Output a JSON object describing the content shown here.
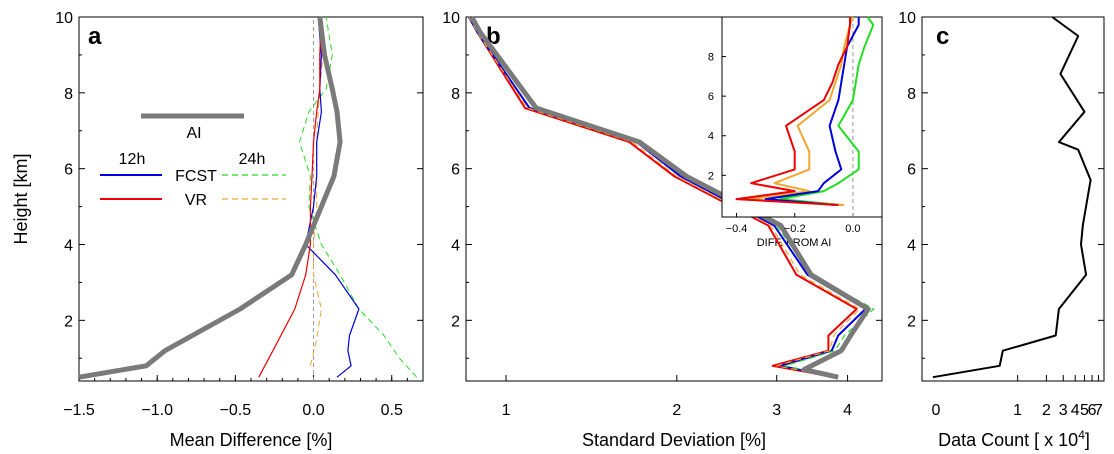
{
  "colors": {
    "ai": "#7a7a7a",
    "fcst_12h": "#0000dd",
    "vr_12h": "#ee0000",
    "fcst_24h": "#22dd22",
    "vr_24h": "#f0a830",
    "zero_line": "#999999",
    "text": "#000000"
  },
  "y_axis": {
    "label": "Height [km]",
    "ticks": [
      2,
      4,
      6,
      8,
      10
    ]
  },
  "legend": {
    "ai_label": "AI",
    "header_12h": "12h",
    "header_24h": "24h",
    "fcst_label": "FCST",
    "vr_label": "VR"
  },
  "chart_data": [
    {
      "panel": "a",
      "type": "line",
      "xlabel": "Mean Difference [%]",
      "ylabel": "Height [km]",
      "xlim": [
        -1.5,
        0.7
      ],
      "ylim": [
        0.4,
        10
      ],
      "xticks": [
        -1.5,
        -1.0,
        -0.5,
        0.0,
        0.5
      ],
      "xtick_labels": [
        "−1.5",
        "−1.0",
        "−0.5",
        "0.0",
        "0.5"
      ],
      "yticks": [
        2,
        4,
        6,
        8,
        10
      ],
      "legend_position": "center-left",
      "series": [
        {
          "key": "ai",
          "name": "AI",
          "style": "thick-solid",
          "points": [
            [
              -1.5,
              0.5
            ],
            [
              -1.07,
              0.8
            ],
            [
              -0.95,
              1.2
            ],
            [
              -0.47,
              2.3
            ],
            [
              -0.14,
              3.2
            ],
            [
              -0.05,
              4.0
            ],
            [
              0.05,
              5.0
            ],
            [
              0.13,
              5.8
            ],
            [
              0.17,
              6.7
            ],
            [
              0.15,
              7.5
            ],
            [
              0.12,
              8.1
            ],
            [
              0.07,
              9.0
            ],
            [
              0.04,
              10.0
            ]
          ]
        },
        {
          "key": "fcst_12h",
          "name": "FCST 12h",
          "style": "solid",
          "points": [
            [
              0.15,
              0.5
            ],
            [
              0.24,
              0.8
            ],
            [
              0.22,
              1.2
            ],
            [
              0.23,
              1.6
            ],
            [
              0.29,
              2.3
            ],
            [
              0.14,
              3.2
            ],
            [
              -0.05,
              4.0
            ],
            [
              0.0,
              5.0
            ],
            [
              0.02,
              5.8
            ],
            [
              0.02,
              6.7
            ],
            [
              0.05,
              7.5
            ],
            [
              0.04,
              8.1
            ],
            [
              0.05,
              9.0
            ],
            [
              0.03,
              10.0
            ]
          ]
        },
        {
          "key": "vr_12h",
          "name": "VR 12h",
          "style": "solid",
          "points": [
            [
              -0.35,
              0.5
            ],
            [
              -0.26,
              1.2
            ],
            [
              -0.12,
              2.3
            ],
            [
              -0.05,
              3.2
            ],
            [
              -0.02,
              4.0
            ],
            [
              -0.02,
              5.0
            ],
            [
              -0.01,
              5.8
            ],
            [
              0.0,
              6.7
            ],
            [
              0.02,
              7.5
            ],
            [
              0.04,
              8.1
            ],
            [
              0.04,
              9.0
            ],
            [
              0.05,
              10.0
            ]
          ]
        },
        {
          "key": "fcst_24h",
          "name": "FCST 24h",
          "style": "dashed",
          "points": [
            [
              0.66,
              0.5
            ],
            [
              0.55,
              1.0
            ],
            [
              0.45,
              1.6
            ],
            [
              0.29,
              2.3
            ],
            [
              0.17,
              3.2
            ],
            [
              0.05,
              4.0
            ],
            [
              -0.03,
              5.0
            ],
            [
              -0.02,
              5.8
            ],
            [
              -0.09,
              6.7
            ],
            [
              -0.03,
              7.5
            ],
            [
              0.08,
              8.1
            ],
            [
              0.12,
              9.0
            ],
            [
              0.08,
              10.0
            ]
          ]
        },
        {
          "key": "vr_24h",
          "name": "VR 24h",
          "style": "dashed",
          "points": [
            [
              -0.02,
              0.8
            ],
            [
              0.02,
              1.5
            ],
            [
              0.05,
              2.3
            ],
            [
              0.0,
              3.2
            ],
            [
              0.0,
              4.0
            ],
            [
              0.02,
              5.0
            ],
            [
              0.02,
              5.8
            ],
            [
              0.02,
              6.7
            ],
            [
              0.03,
              7.5
            ],
            [
              0.04,
              8.1
            ],
            [
              0.06,
              9.0
            ],
            [
              0.05,
              10.0
            ]
          ]
        }
      ]
    },
    {
      "panel": "b",
      "type": "line",
      "xlabel": "Standard Deviation [%]",
      "ylabel": "",
      "xscale": "log",
      "xlim": [
        0.85,
        4.6
      ],
      "ylim": [
        0.4,
        10
      ],
      "xticks": [
        1,
        2,
        3,
        4
      ],
      "yticks": [
        2,
        4,
        6,
        8,
        10
      ],
      "series": [
        {
          "key": "ai",
          "name": "AI",
          "style": "thick-solid",
          "points": [
            [
              3.85,
              0.5
            ],
            [
              3.35,
              0.7
            ],
            [
              3.9,
              1.2
            ],
            [
              4.05,
              1.6
            ],
            [
              4.35,
              2.3
            ],
            [
              3.45,
              3.2
            ],
            [
              3.05,
              4.5
            ],
            [
              2.08,
              5.8
            ],
            [
              1.72,
              6.7
            ],
            [
              1.13,
              7.6
            ],
            [
              0.9,
              9.6
            ],
            [
              0.87,
              10.0
            ]
          ]
        },
        {
          "key": "fcst_12h",
          "name": "FCST 12h",
          "style": "solid",
          "points": [
            [
              3.8,
              0.5
            ],
            [
              3.05,
              0.8
            ],
            [
              3.75,
              1.2
            ],
            [
              3.85,
              1.6
            ],
            [
              4.3,
              2.3
            ],
            [
              3.4,
              3.2
            ],
            [
              2.97,
              4.5
            ],
            [
              2.03,
              5.8
            ],
            [
              1.7,
              6.7
            ],
            [
              1.1,
              7.6
            ],
            [
              0.89,
              9.6
            ],
            [
              0.86,
              10.0
            ]
          ]
        },
        {
          "key": "vr_12h",
          "name": "VR 12h",
          "style": "solid",
          "points": [
            [
              3.8,
              0.5
            ],
            [
              2.95,
              0.8
            ],
            [
              3.7,
              1.2
            ],
            [
              3.7,
              1.6
            ],
            [
              4.15,
              2.3
            ],
            [
              3.25,
              3.2
            ],
            [
              2.9,
              4.5
            ],
            [
              1.98,
              5.8
            ],
            [
              1.65,
              6.7
            ],
            [
              1.08,
              7.6
            ],
            [
              0.89,
              9.6
            ],
            [
              0.86,
              10.0
            ]
          ]
        },
        {
          "key": "fcst_24h",
          "name": "FCST 24h",
          "style": "dashed",
          "points": [
            [
              3.85,
              0.5
            ],
            [
              3.1,
              0.8
            ],
            [
              3.8,
              1.2
            ],
            [
              3.95,
              1.6
            ],
            [
              4.45,
              2.3
            ],
            [
              3.45,
              3.2
            ],
            [
              3.0,
              4.5
            ],
            [
              2.07,
              5.8
            ],
            [
              1.71,
              6.7
            ],
            [
              1.12,
              7.6
            ],
            [
              0.9,
              9.6
            ],
            [
              0.87,
              10.0
            ]
          ]
        },
        {
          "key": "vr_24h",
          "name": "VR 24h",
          "style": "dashed",
          "points": [
            [
              3.82,
              0.5
            ],
            [
              3.0,
              0.8
            ],
            [
              3.72,
              1.2
            ],
            [
              3.78,
              1.6
            ],
            [
              4.2,
              2.3
            ],
            [
              3.3,
              3.2
            ],
            [
              2.93,
              4.5
            ],
            [
              2.0,
              5.8
            ],
            [
              1.67,
              6.7
            ],
            [
              1.09,
              7.6
            ],
            [
              0.89,
              9.6
            ],
            [
              0.86,
              10.0
            ]
          ]
        }
      ],
      "inset": {
        "type": "line",
        "xlabel": "DIFF. FROM AI",
        "xlim": [
          -0.45,
          0.1
        ],
        "ylim": [
          0.5,
          10
        ],
        "xticks": [
          -0.4,
          -0.2,
          0.0
        ],
        "xtick_labels": [
          "−0.4",
          "−0.2",
          "0.0"
        ],
        "yticks": [
          2,
          4,
          6,
          8
        ],
        "series": [
          {
            "key": "fcst_12h",
            "points": [
              [
                -0.06,
                0.5
              ],
              [
                -0.3,
                0.8
              ],
              [
                -0.12,
                1.2
              ],
              [
                -0.1,
                1.6
              ],
              [
                -0.04,
                2.3
              ],
              [
                -0.06,
                3.2
              ],
              [
                -0.08,
                4.5
              ],
              [
                -0.05,
                5.8
              ],
              [
                -0.04,
                6.7
              ],
              [
                -0.03,
                7.6
              ],
              [
                -0.02,
                8.5
              ],
              [
                0.02,
                9.6
              ],
              [
                0.02,
                10.0
              ]
            ]
          },
          {
            "key": "vr_12h",
            "points": [
              [
                -0.05,
                0.5
              ],
              [
                -0.4,
                0.8
              ],
              [
                -0.2,
                1.2
              ],
              [
                -0.35,
                1.6
              ],
              [
                -0.2,
                2.3
              ],
              [
                -0.2,
                3.2
              ],
              [
                -0.23,
                4.5
              ],
              [
                -0.1,
                5.8
              ],
              [
                -0.07,
                6.7
              ],
              [
                -0.05,
                7.6
              ],
              [
                -0.02,
                8.5
              ],
              [
                -0.01,
                9.6
              ],
              [
                -0.01,
                10.0
              ]
            ]
          },
          {
            "key": "fcst_24h",
            "points": [
              [
                -0.04,
                0.5
              ],
              [
                -0.25,
                0.8
              ],
              [
                -0.1,
                1.2
              ],
              [
                -0.05,
                1.6
              ],
              [
                0.02,
                2.3
              ],
              [
                0.02,
                3.2
              ],
              [
                -0.05,
                4.5
              ],
              [
                0.0,
                5.8
              ],
              [
                0.01,
                6.7
              ],
              [
                0.02,
                7.6
              ],
              [
                0.04,
                8.5
              ],
              [
                0.07,
                9.6
              ],
              [
                0.05,
                10.0
              ]
            ]
          },
          {
            "key": "vr_24h",
            "points": [
              [
                -0.03,
                0.5
              ],
              [
                -0.36,
                0.8
              ],
              [
                -0.15,
                1.2
              ],
              [
                -0.27,
                1.6
              ],
              [
                -0.15,
                2.3
              ],
              [
                -0.15,
                3.2
              ],
              [
                -0.19,
                4.5
              ],
              [
                -0.08,
                5.8
              ],
              [
                -0.06,
                6.7
              ],
              [
                -0.04,
                7.6
              ],
              [
                -0.03,
                8.5
              ],
              [
                -0.01,
                9.6
              ],
              [
                0.0,
                10.0
              ]
            ]
          }
        ]
      }
    },
    {
      "panel": "c",
      "type": "line",
      "xlabel": "Data Count [ x 10⁴]",
      "ylabel": "",
      "xscale": "log",
      "xlim": [
        0.1,
        8
      ],
      "ylim": [
        0.4,
        10
      ],
      "xticks": [
        1,
        2,
        3,
        4,
        5,
        6,
        7
      ],
      "xtick_labels": [
        "1",
        "2",
        "3",
        "4",
        "5",
        "6",
        "7"
      ],
      "yticks": [
        2,
        4,
        6,
        8,
        10
      ],
      "series": [
        {
          "key": "count",
          "name": "Data Count",
          "style": "solid",
          "points": [
            [
              0.13,
              0.5
            ],
            [
              0.65,
              0.8
            ],
            [
              0.7,
              1.2
            ],
            [
              2.5,
              1.6
            ],
            [
              2.7,
              2.3
            ],
            [
              5.2,
              3.2
            ],
            [
              4.6,
              4.0
            ],
            [
              4.8,
              4.5
            ],
            [
              5.8,
              5.7
            ],
            [
              4.3,
              6.5
            ],
            [
              2.7,
              6.7
            ],
            [
              5.0,
              7.5
            ],
            [
              2.8,
              8.5
            ],
            [
              4.3,
              9.5
            ],
            [
              2.3,
              10.0
            ]
          ]
        }
      ]
    }
  ]
}
